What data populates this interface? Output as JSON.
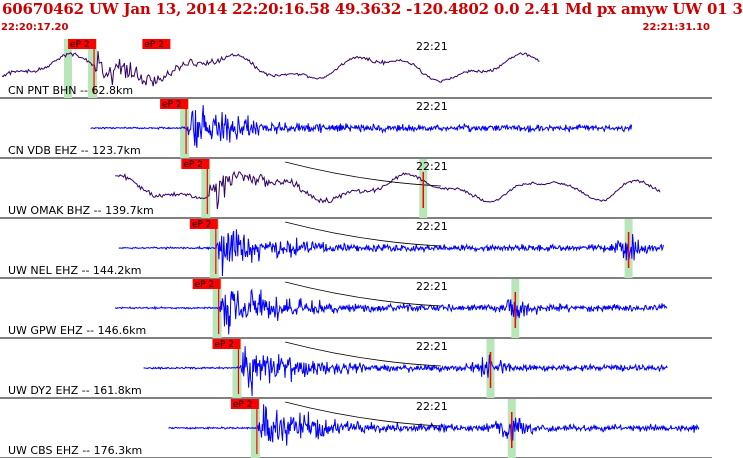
{
  "header": {
    "title": "60670462 UW Jan 13, 2014 22:20:16.58   49.3632 -120.4802  0.0 2.41 Md px amyw UW 01   3",
    "start_time": "22:20:17.20",
    "end_time": "22:21:31.10"
  },
  "colors": {
    "header_text": "#cc0000",
    "trace_blue": "#0000ff",
    "trace_purple": "#330066",
    "pick_box": "#ff0000",
    "window_band": "#b8e6b8",
    "divider": "#000000"
  },
  "chart_data": {
    "type": "line",
    "time_range": [
      "22:20:17.20",
      "22:21:31.10"
    ],
    "minute_marker": "22:21",
    "pick_label": "eP 2",
    "panels": [
      {
        "label": "CN PNT BHN -- 62.8km",
        "color": "#330066",
        "style": "longperiod",
        "start": 0.0,
        "end": 0.76,
        "p_arrival": 0.13,
        "extra_pick": 0.235,
        "has_coda_curve": false,
        "coda_marker": null
      },
      {
        "label": "CN VDB EHZ -- 123.7km",
        "color": "#0000ff",
        "style": "short",
        "start": 0.125,
        "end": 0.89,
        "p_arrival": 0.26,
        "extra_pick": null,
        "has_coda_curve": false,
        "coda_marker": null
      },
      {
        "label": "UW OMAK BHZ -- 139.7km",
        "color": "#330066",
        "style": "longperiod",
        "start": 0.16,
        "end": 0.93,
        "p_arrival": 0.29,
        "extra_pick": null,
        "has_coda_curve": true,
        "coda_marker": 0.595
      },
      {
        "label": "UW NEL EHZ -- 144.2km",
        "color": "#0000ff",
        "style": "short",
        "start": 0.165,
        "end": 0.935,
        "p_arrival": 0.302,
        "extra_pick": null,
        "has_coda_curve": true,
        "coda_marker": 0.885
      },
      {
        "label": "UW GPW EHZ -- 146.6km",
        "color": "#0000ff",
        "style": "short",
        "start": 0.16,
        "end": 0.94,
        "p_arrival": 0.306,
        "extra_pick": null,
        "has_coda_curve": true,
        "coda_marker": 0.725
      },
      {
        "label": "UW DY2 EHZ -- 161.8km",
        "color": "#0000ff",
        "style": "short",
        "start": 0.2,
        "end": 0.94,
        "p_arrival": 0.334,
        "extra_pick": null,
        "has_coda_curve": true,
        "coda_marker": 0.69
      },
      {
        "label": "UW CBS EHZ -- 176.3km",
        "color": "#0000ff",
        "style": "short",
        "start": 0.235,
        "end": 0.985,
        "p_arrival": 0.36,
        "extra_pick": null,
        "has_coda_curve": true,
        "coda_marker": 0.72
      }
    ]
  }
}
